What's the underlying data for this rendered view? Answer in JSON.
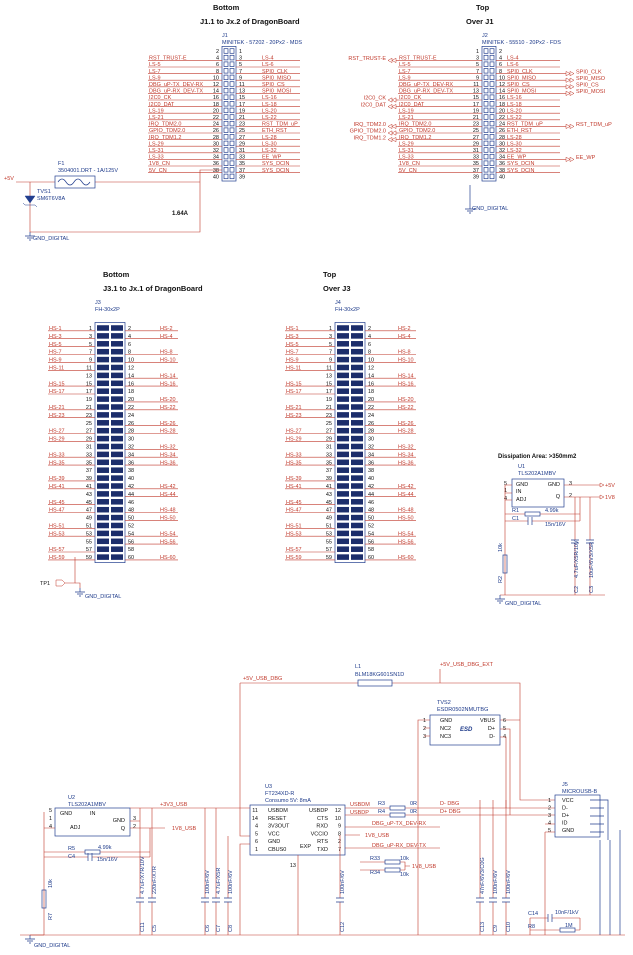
{
  "j1": {
    "side": "Bottom",
    "title": "J1.1 to Jx.2 of DragonBoard",
    "ref": "J1",
    "part": "MINITEK - 57202 - 20Px2 - MDS",
    "left_pins": [
      2,
      4,
      6,
      8,
      10,
      12,
      14,
      16,
      18,
      20,
      22,
      24,
      26,
      28,
      30,
      32,
      34,
      36,
      38,
      40
    ],
    "right_pins": [
      1,
      3,
      5,
      7,
      9,
      11,
      13,
      15,
      17,
      19,
      21,
      23,
      25,
      27,
      29,
      31,
      33,
      35,
      37,
      39
    ],
    "left_nets": [
      null,
      "RST_TRUST-E",
      "LS-5",
      "LS-7",
      "LS-9",
      "DBG_uP-TX_DEV-RX",
      "DBG_uP-RX_DEV-TX",
      "I2C0_CK",
      "I2C0_DAT",
      "LS-19",
      "LS-21",
      "IRQ_TDM2.0",
      "GPIO_TDM2.0",
      "IRQ_TDM1.2",
      "LS-29",
      "LS-31",
      "LS-33",
      "1V8_CN",
      "5V_CN",
      null
    ],
    "right_nets": [
      null,
      "LS-4",
      "LS-6",
      "SPI0_CLK",
      "SPI0_MISO",
      "SPI0_CS",
      "SPI0_MOSI",
      "LS-16",
      "LS-18",
      "LS-20",
      "LS-22",
      "RST_TDM_uP",
      "ETH_RST",
      "LS-28",
      "LS-30",
      "LS-32",
      "EE_WP",
      "SYS_DCIN",
      "SYS_DCIN",
      null
    ]
  },
  "power": {
    "supply": "+5V",
    "fuse_ref": "F1",
    "fuse_part": "3504001.DRT - 1A/125V",
    "tvs_ref": "TVS1",
    "tvs_part": "SM6T6V8A",
    "current": "1.64A",
    "gnd": "GND_DIGITAL"
  },
  "j2": {
    "side": "Top",
    "title": "Over J1",
    "ref": "J2",
    "part": "MINITEK - 55510 - 20Px2 - FDS",
    "left_pins": [
      1,
      3,
      5,
      7,
      9,
      11,
      13,
      15,
      17,
      19,
      21,
      23,
      25,
      27,
      29,
      31,
      33,
      35,
      37,
      39
    ],
    "right_pins": [
      2,
      4,
      6,
      8,
      10,
      12,
      14,
      16,
      18,
      20,
      22,
      24,
      26,
      28,
      30,
      32,
      34,
      36,
      38,
      40
    ],
    "left_nets": [
      null,
      "RST_TRUST-E",
      "LS-5",
      "LS-7",
      "LS-9",
      "DBG_uP-TX_DEV-RX",
      "DBG_uP-RX_DEV-TX",
      "I2C0_CK",
      "I2C0_DAT",
      "LS-19",
      "LS-21",
      "IRQ_TDM2.0",
      "GPIO_TDM2.0",
      "IRQ_TDM1.2",
      "LS-29",
      "LS-31",
      "LS-33",
      "1V8_CN",
      "5V_CN",
      null
    ],
    "right_nets": [
      null,
      "LS-4",
      "LS-6",
      "SPI0_CLK",
      "SPI0_MISO",
      "SPI0_CS",
      "SPI0_MOSI",
      "LS-16",
      "LS-18",
      "LS-20",
      "LS-22",
      "RST_TDM_uP",
      "ETH_RST",
      "LS-28",
      "LS-30",
      "LS-32",
      "EE_WP",
      "SYS_DCIN",
      "SYS_DCIN",
      null
    ],
    "left_ports": [
      null,
      "RST_TRUST-E",
      null,
      null,
      null,
      null,
      null,
      "I2C0_CK",
      "I2C0_DAT",
      null,
      null,
      "IRQ_TDM2.0",
      "GPIO_TDM2.0",
      "IRQ_TDM1.2",
      null,
      null,
      null,
      null,
      null,
      null
    ],
    "right_ports": [
      null,
      null,
      null,
      "SPI0_CLK",
      "SPI0_MISO",
      "SPI0_CS",
      "SPI0_MOSI",
      null,
      null,
      null,
      null,
      "RST_TDM_uP",
      null,
      null,
      null,
      null,
      "EE_WP",
      null,
      null,
      null
    ],
    "gnd": "GND_DIGITAL"
  },
  "j3": {
    "side": "Bottom",
    "title": "J3.1 to Jx.1 of DragonBoard",
    "ref": "J3",
    "part": "FH-30x2P",
    "left_pins": [
      1,
      3,
      5,
      7,
      9,
      11,
      13,
      15,
      17,
      19,
      21,
      23,
      25,
      27,
      29,
      31,
      33,
      35,
      37,
      39,
      41,
      43,
      45,
      47,
      49,
      51,
      53,
      55,
      57,
      59
    ],
    "right_pins": [
      2,
      4,
      6,
      8,
      10,
      12,
      14,
      16,
      18,
      20,
      22,
      24,
      26,
      28,
      30,
      32,
      34,
      36,
      38,
      40,
      42,
      44,
      46,
      48,
      50,
      52,
      54,
      56,
      58,
      60
    ],
    "left_nets": [
      "HS-1",
      "HS-3",
      "HS-5",
      "HS-7",
      "HS-9",
      "HS-11",
      null,
      "HS-15",
      "HS-17",
      null,
      "HS-21",
      "HS-23",
      null,
      "HS-27",
      "HS-29",
      null,
      "HS-33",
      "HS-35",
      null,
      "HS-39",
      "HS-41",
      null,
      "HS-45",
      "HS-47",
      null,
      "HS-51",
      "HS-53",
      null,
      "HS-57",
      "HS-59"
    ],
    "right_nets": [
      "HS-2",
      "HS-4",
      null,
      "HS-8",
      "HS-10",
      null,
      "HS-14",
      "HS-16",
      null,
      "HS-20",
      "HS-22",
      null,
      "HS-26",
      "HS-28",
      null,
      "HS-32",
      "HS-34",
      "HS-36",
      null,
      null,
      "HS-42",
      "HS-44",
      null,
      "HS-48",
      "HS-50",
      null,
      "HS-54",
      "HS-56",
      null,
      "HS-60"
    ]
  },
  "j4": {
    "side": "Top",
    "title": "Over J3",
    "ref": "J4",
    "part": "FH-30x2P",
    "left_pins": [
      1,
      3,
      5,
      7,
      9,
      11,
      13,
      15,
      17,
      19,
      21,
      23,
      25,
      27,
      29,
      31,
      33,
      35,
      37,
      39,
      41,
      43,
      45,
      47,
      49,
      51,
      53,
      55,
      57,
      59
    ],
    "right_pins": [
      2,
      4,
      6,
      8,
      10,
      12,
      14,
      16,
      18,
      20,
      22,
      24,
      26,
      28,
      30,
      32,
      34,
      36,
      38,
      40,
      42,
      44,
      46,
      48,
      50,
      52,
      54,
      56,
      58,
      60
    ],
    "left_nets": [
      "HS-1",
      "HS-3",
      "HS-5",
      "HS-7",
      "HS-9",
      "HS-11",
      null,
      "HS-15",
      "HS-17",
      null,
      "HS-21",
      "HS-23",
      null,
      "HS-27",
      "HS-29",
      null,
      "HS-33",
      "HS-35",
      null,
      "HS-39",
      "HS-41",
      null,
      "HS-45",
      "HS-47",
      null,
      "HS-51",
      "HS-53",
      null,
      "HS-57",
      "HS-59"
    ],
    "right_nets": [
      "HS-2",
      "HS-4",
      null,
      "HS-8",
      "HS-10",
      null,
      "HS-14",
      "HS-16",
      null,
      "HS-20",
      "HS-22",
      null,
      "HS-26",
      "HS-28",
      null,
      "HS-32",
      "HS-34",
      "HS-36",
      null,
      null,
      "HS-42",
      "HS-44",
      null,
      "HS-48",
      "HS-50",
      null,
      "HS-54",
      "HS-56",
      null,
      "HS-60"
    ]
  },
  "tp": {
    "ref": "TP1",
    "gnd": "GND_DIGITAL"
  },
  "u1": {
    "title": "Dissipation Area: >350mm2",
    "ref": "U1",
    "part": "TLS202A1MBV",
    "pins": [
      "GND",
      "IN",
      "ADJ",
      "GND",
      "Q"
    ],
    "pin_numbers": [
      5,
      1,
      4,
      3,
      2
    ],
    "vin": "+5V",
    "vout": "1V8",
    "r1": [
      "R1",
      "4.99k"
    ],
    "c1": [
      "C1",
      "15n/16V"
    ],
    "r2": [
      "R2",
      "10k"
    ],
    "c2": [
      "C2",
      "4.7uF/X5R/10V"
    ],
    "c3": [
      "C3",
      "10uF/6V3/X5R"
    ],
    "gnd": "GND_DIGITAL"
  },
  "usb": {
    "l1_ref": "L1",
    "l1_part": "BLM18KG601SN1D",
    "ext": "+5V_USB_DBG_EXT",
    "net5v": "+5V_USB_DBG",
    "tvs2_ref": "TVS2",
    "tvs2_part": "ESDR0502NMUTBG",
    "tvs2_pins": [
      "GND",
      "NC2",
      "NC3",
      "VBUS",
      "D+",
      "D-"
    ],
    "tvs2_numbers": [
      1,
      2,
      3,
      6,
      5,
      4
    ],
    "tvs2_mark": "ESD",
    "u3_ref": "U3",
    "u3_part": "FT234XD-R",
    "u3_note": "Consumo 5V: 8mA",
    "u3_left": [
      "USBDM",
      "RESET",
      "3V3OUT",
      "VCC",
      "GND",
      "CBUS0"
    ],
    "u3_left_numbers": [
      11,
      14,
      4,
      5,
      6,
      1
    ],
    "u3_right": [
      "USBDP",
      "CTS",
      "RXD",
      "VCCIO",
      "RTS",
      "TXD"
    ],
    "u3_right_numbers": [
      12,
      10,
      9,
      8,
      2,
      7
    ],
    "u3_exp": "EXP",
    "u3_exp_number": 13,
    "usbdm": "USBDM",
    "usbdp": "USBDP",
    "r3": [
      "R3",
      "0R"
    ],
    "r4": [
      "R4",
      "0R"
    ],
    "dm": "D- DBG",
    "dp": "D+ DBG",
    "tx": "DBG_uP-TX_DEV-RX",
    "rx": "DBG_uP-RX_DEV-TX",
    "v18": "1V8_USB",
    "r33": [
      "R33",
      "10k"
    ],
    "r34": [
      "R34",
      "10k"
    ],
    "j5_ref": "J5",
    "j5_part": "MICROUSB-B",
    "j5_pins": [
      "VCC",
      "D-",
      "D+",
      "ID",
      "GND"
    ],
    "j5_numbers": [
      1,
      2,
      3,
      4,
      5
    ],
    "u2_ref": "U2",
    "u2_part": "TLS202A1MBV",
    "u2_pins": [
      "GND",
      "IN",
      "ADJ",
      "GND",
      "Q"
    ],
    "u2_numbers": [
      5,
      1,
      4,
      3,
      2
    ],
    "v33": "+3V3_USB",
    "r5": [
      "R5",
      "4.99k"
    ],
    "c4": [
      "C4",
      "15n/16V"
    ],
    "r7": [
      "R7",
      "10k"
    ],
    "c11": [
      "C11",
      "4.7uF/X7R/10V"
    ],
    "c5": [
      "C5",
      "220nF/X7R"
    ],
    "c6": [
      "C6",
      "100nF/6V"
    ],
    "c7": [
      "C7",
      "4.7uF/X5R"
    ],
    "c8": [
      "C8",
      "100nF/6V"
    ],
    "c12": [
      "C12",
      "100nF/6V"
    ],
    "c13": [
      "C13",
      "47nF/6V3/C0G"
    ],
    "c9": [
      "C9",
      "100nF/6V"
    ],
    "c10": [
      "C10",
      "100nF/6V"
    ],
    "c14": [
      "C14",
      "10nF/1kV"
    ],
    "r8": [
      "R8",
      "1M"
    ],
    "gnd": "GND_DIGITAL"
  }
}
